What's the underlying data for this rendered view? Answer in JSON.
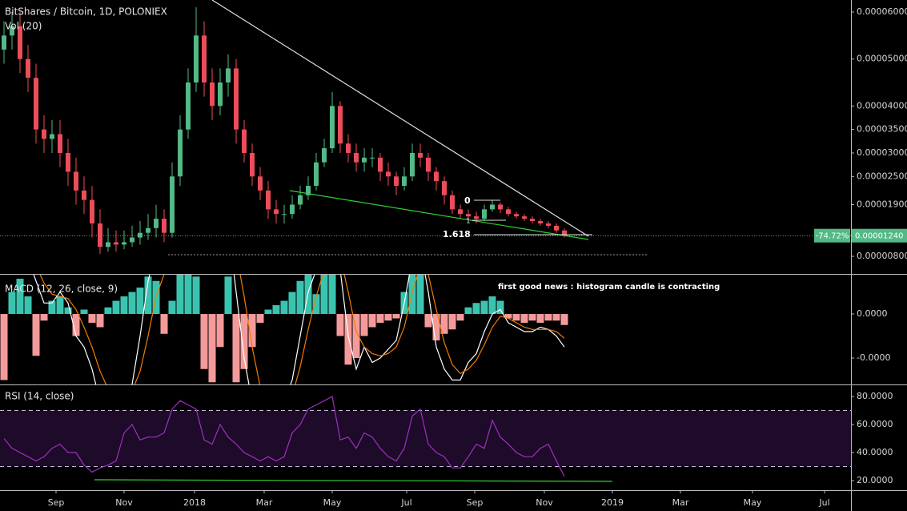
{
  "chart_data": [
    {
      "type": "candlestick",
      "title": "BitShares / Bitcoin, 1D, POLONIEX",
      "subtitle": "Vol (20)",
      "up_color": "#53b987",
      "down_color": "#eb4d5c",
      "xlim": [
        -0.5,
        105.8
      ],
      "ylim": [
        4.25e-06,
        6.256e-05
      ],
      "yticks": [
        {
          "value": 6e-05,
          "label": "0.00006000"
        },
        {
          "value": 5e-05,
          "label": "0.00005000"
        },
        {
          "value": 4e-05,
          "label": "0.00004000"
        },
        {
          "value": 3.5e-05,
          "label": "0.00003500"
        },
        {
          "value": 3e-05,
          "label": "0.00003000"
        },
        {
          "value": 2.5e-05,
          "label": "0.00002500"
        },
        {
          "value": 1.9e-05,
          "label": "0.00001900"
        },
        {
          "value": 8e-06,
          "label": "0.00000800"
        }
      ],
      "last_price": {
        "value": 1.24e-05,
        "label": "0.00001240",
        "change": "-74.72%"
      },
      "fib_labels": [
        "0",
        "1",
        "1.618"
      ],
      "open": [
        5.2e-05,
        5.5e-05,
        5.7e-05,
        5e-05,
        4.6e-05,
        3.5e-05,
        3.3e-05,
        3.4e-05,
        3e-05,
        2.6e-05,
        2.2e-05,
        2e-05,
        1.5e-05,
        1e-05,
        1.1e-05,
        1.05e-05,
        1.1e-05,
        1.2e-05,
        1.3e-05,
        1.4e-05,
        1.6e-05,
        1.3e-05,
        2.5e-05,
        3.5e-05,
        4.5e-05,
        5.5e-05,
        4.5e-05,
        4e-05,
        4.5e-05,
        4.8e-05,
        3.5e-05,
        3e-05,
        2.5e-05,
        2.2e-05,
        1.8e-05,
        1.7e-05,
        1.7e-05,
        1.9e-05,
        2.1e-05,
        2.3e-05,
        2.8e-05,
        3.1e-05,
        4e-05,
        3.2e-05,
        3e-05,
        2.8e-05,
        2.9e-05,
        2.9e-05,
        2.6e-05,
        2.5e-05,
        2.3e-05,
        2.5e-05,
        3e-05,
        2.9e-05,
        2.6e-05,
        2.4e-05,
        2.1e-05,
        1.8e-05,
        1.7e-05,
        1.65e-05,
        1.6e-05,
        1.8e-05,
        1.9e-05,
        1.8e-05,
        1.7e-05,
        1.65e-05,
        1.6e-05,
        1.55e-05,
        1.5e-05,
        1.45e-05,
        1.35e-05
      ],
      "high": [
        5.8e-05,
        6e-05,
        6e-05,
        5.3e-05,
        4.9e-05,
        3.8e-05,
        3.7e-05,
        3.7e-05,
        3.3e-05,
        2.9e-05,
        2.5e-05,
        2.3e-05,
        1.8e-05,
        1.4e-05,
        1.35e-05,
        1.35e-05,
        1.45e-05,
        1.55e-05,
        1.7e-05,
        1.9e-05,
        1.8e-05,
        2.8e-05,
        3.8e-05,
        4.8e-05,
        6.1e-05,
        5.8e-05,
        4.8e-05,
        4.8e-05,
        5.1e-05,
        5e-05,
        3.7e-05,
        3.2e-05,
        2.7e-05,
        2.4e-05,
        2e-05,
        1.9e-05,
        2.1e-05,
        2.3e-05,
        2.5e-05,
        3e-05,
        3.3e-05,
        4.3e-05,
        4.1e-05,
        3.4e-05,
        3.2e-05,
        3.1e-05,
        3.1e-05,
        3e-05,
        2.8e-05,
        2.6e-05,
        2.7e-05,
        3.2e-05,
        3.2e-05,
        3e-05,
        2.7e-05,
        2.5e-05,
        2.2e-05,
        1.9e-05,
        1.8e-05,
        1.75e-05,
        1.9e-05,
        2e-05,
        1.95e-05,
        1.85e-05,
        1.75e-05,
        1.7e-05,
        1.65e-05,
        1.6e-05,
        1.55e-05,
        1.5e-05,
        1.4e-05
      ],
      "low": [
        4.9e-05,
        5.2e-05,
        4.7e-05,
        4.3e-05,
        3.2e-05,
        3e-05,
        3e-05,
        2.7e-05,
        2.3e-05,
        1.9e-05,
        1.7e-05,
        1.2e-05,
        8.5e-06,
        9e-06,
        9e-06,
        9.5e-06,
        1e-05,
        1.05e-05,
        1.15e-05,
        1.2e-05,
        1.1e-05,
        1.2e-05,
        2.3e-05,
        3.3e-05,
        4.3e-05,
        4.2e-05,
        3.7e-05,
        3.8e-05,
        4.2e-05,
        3.2e-05,
        2.8e-05,
        2.3e-05,
        2e-05,
        1.6e-05,
        1.5e-05,
        1.5e-05,
        1.6e-05,
        1.8e-05,
        2e-05,
        2.2e-05,
        2.7e-05,
        3e-05,
        3e-05,
        2.8e-05,
        2.6e-05,
        2.6e-05,
        2.7e-05,
        2.4e-05,
        2.3e-05,
        2.1e-05,
        2.2e-05,
        2.4e-05,
        2.7e-05,
        2.4e-05,
        2.2e-05,
        1.9e-05,
        1.7e-05,
        1.6e-05,
        1.55e-05,
        1.5e-05,
        1.55e-05,
        1.75e-05,
        1.72e-05,
        1.65e-05,
        1.6e-05,
        1.55e-05,
        1.5e-05,
        1.45e-05,
        1.4e-05,
        1.3e-05,
        1.2e-05
      ],
      "close": [
        5.5e-05,
        5.7e-05,
        5e-05,
        4.6e-05,
        3.5e-05,
        3.3e-05,
        3.4e-05,
        3e-05,
        2.6e-05,
        2.2e-05,
        2e-05,
        1.5e-05,
        1e-05,
        1.1e-05,
        1.05e-05,
        1.1e-05,
        1.2e-05,
        1.3e-05,
        1.4e-05,
        1.6e-05,
        1.3e-05,
        2.5e-05,
        3.5e-05,
        4.5e-05,
        5.5e-05,
        4.5e-05,
        4e-05,
        4.5e-05,
        4.8e-05,
        3.5e-05,
        3e-05,
        2.5e-05,
        2.2e-05,
        1.8e-05,
        1.7e-05,
        1.7e-05,
        1.9e-05,
        2.1e-05,
        2.3e-05,
        2.8e-05,
        3.1e-05,
        4e-05,
        3.2e-05,
        3e-05,
        2.8e-05,
        2.9e-05,
        2.9e-05,
        2.6e-05,
        2.5e-05,
        2.3e-05,
        2.5e-05,
        3e-05,
        2.9e-05,
        2.6e-05,
        2.4e-05,
        2.1e-05,
        1.8e-05,
        1.7e-05,
        1.65e-05,
        1.6e-05,
        1.8e-05,
        1.9e-05,
        1.8e-05,
        1.7e-05,
        1.65e-05,
        1.6e-05,
        1.55e-05,
        1.5e-05,
        1.45e-05,
        1.35e-05,
        1.24e-05
      ]
    },
    {
      "type": "macd",
      "title": "MACD (12, 26, close, 9)",
      "annotation": "first good news : histogram candle is contracting",
      "hist_up_color": "#3ac4b0",
      "hist_down_color": "#f59a9a",
      "macd_color": "#ffffff",
      "signal_color": "#f57c00",
      "xlim": [
        -0.5,
        105.8
      ],
      "ylim": [
        -3.2e-06,
        1.82e-06
      ],
      "yticks": [
        {
          "value": 0,
          "label": "0.0000"
        },
        {
          "value": -2e-06,
          "label": "-0.0000"
        }
      ],
      "histogram": [
        -3e-06,
        1e-06,
        1.6e-06,
        8e-07,
        -1.9e-06,
        -3e-07,
        6e-07,
        8e-07,
        3e-07,
        -1e-06,
        2e-07,
        -4e-07,
        -6e-07,
        3e-07,
        6e-07,
        8e-07,
        1e-06,
        1.2e-06,
        1.7e-06,
        1.5e-06,
        -9e-07,
        6e-07,
        1.8e-06,
        1.8e-06,
        1.7e-06,
        -2.5e-06,
        -3.1e-06,
        -1.5e-06,
        1.7e-06,
        -3.1e-06,
        -2.5e-06,
        -1.5e-06,
        -4e-07,
        2e-07,
        4e-07,
        6e-07,
        1e-06,
        1.5e-06,
        1.8e-06,
        9e-07,
        1.8e-06,
        1.8e-06,
        -1e-06,
        -2.3e-06,
        -2e-06,
        -1e-06,
        -6e-07,
        -4e-07,
        -3e-07,
        -2e-07,
        1e-06,
        1.8e-06,
        1.8e-06,
        -6e-07,
        -1.2e-06,
        -9e-07,
        -7e-07,
        -3e-07,
        3e-07,
        5e-07,
        6e-07,
        8e-07,
        6e-07,
        -2e-07,
        -3e-07,
        -4e-07,
        -3e-07,
        -4e-07,
        -3e-07,
        -3e-07,
        -5e-07
      ],
      "macd": [
        3e-06,
        3e-06,
        3e-06,
        2.5e-06,
        1.5e-06,
        5e-07,
        5e-07,
        1e-06,
        5e-07,
        -1e-06,
        -1.5e-06,
        -2.5e-06,
        -4e-06,
        -4.5e-06,
        -4e-06,
        -3.5e-06,
        -3.2e-06,
        -1e-06,
        1.5e-06,
        3e-06,
        2.5e-06,
        3e-06,
        5e-06,
        7e-06,
        8e-06,
        6e-06,
        4e-06,
        3e-06,
        4e-06,
        1e-06,
        -2e-06,
        -4e-06,
        -5e-06,
        -5e-06,
        -4.5e-06,
        -4e-06,
        -3e-06,
        -1e-06,
        1e-06,
        2e-06,
        3e-06,
        4e-06,
        2e-06,
        -1e-06,
        -2.5e-06,
        -1.5e-06,
        -2.2e-06,
        -2e-06,
        -1.6e-06,
        -1.2e-06,
        5e-07,
        2.5e-06,
        3e-06,
        1e-06,
        -1.5e-06,
        -2.5e-06,
        -3e-06,
        -3e-06,
        -2.2e-06,
        -1.8e-06,
        -8e-07,
        0,
        2e-07,
        -4e-07,
        -6e-07,
        -8e-07,
        -8e-07,
        -6e-07,
        -7e-07,
        -1e-06,
        -1.5e-06
      ],
      "signal": [
        2.5e-06,
        2.8e-06,
        3e-06,
        2.8e-06,
        2.2e-06,
        1.4e-06,
        9e-07,
        8e-07,
        7e-07,
        2e-07,
        -6e-07,
        -1.5e-06,
        -2.6e-06,
        -3.4e-06,
        -3.8e-06,
        -3.8e-06,
        -3.5e-06,
        -2.6e-06,
        -1e-06,
        8e-07,
        1.8e-06,
        2.5e-06,
        3.5e-06,
        5e-06,
        6.3e-06,
        6.5e-06,
        5.5e-06,
        4.3e-06,
        3.9e-06,
        2.8e-06,
        8e-07,
        -1.5e-06,
        -3.3e-06,
        -4.3e-06,
        -4.6e-06,
        -4.3e-06,
        -3.7e-06,
        -2.4e-06,
        -7e-07,
        8e-07,
        2e-06,
        3e-06,
        2.6e-06,
        1e-06,
        -8e-07,
        -1.5e-06,
        -1.8e-06,
        -1.9e-06,
        -1.8e-06,
        -1.5e-06,
        -6e-07,
        1e-06,
        2.2e-06,
        1.8e-06,
        2e-07,
        -1.3e-06,
        -2.3e-06,
        -2.7e-06,
        -2.5e-06,
        -2.1e-06,
        -1.4e-06,
        -6e-07,
        -1e-07,
        -2e-07,
        -4e-07,
        -6e-07,
        -7e-07,
        -7e-07,
        -7e-07,
        -8e-07,
        -1.1e-06
      ]
    },
    {
      "type": "line",
      "title": "RSI (14, close)",
      "color": "#a12fc0",
      "band_color": "#1d0b29",
      "bands": [
        30,
        70
      ],
      "xlim": [
        -0.5,
        105.8
      ],
      "ylim": [
        13.1,
        88.6
      ],
      "yticks": [
        {
          "value": 80,
          "label": "80.0000"
        },
        {
          "value": 60,
          "label": "60.0000"
        },
        {
          "value": 40,
          "label": "40.0000"
        },
        {
          "value": 20,
          "label": "20.0000"
        }
      ],
      "xticks": [
        {
          "value": 6.5,
          "label": "Sep"
        },
        {
          "value": 15,
          "label": "Nov"
        },
        {
          "value": 23.8,
          "label": "2018"
        },
        {
          "value": 32.5,
          "label": "Mar"
        },
        {
          "value": 41,
          "label": "May"
        },
        {
          "value": 50.3,
          "label": "Jul"
        },
        {
          "value": 58.8,
          "label": "Sep"
        },
        {
          "value": 67.5,
          "label": "Nov"
        },
        {
          "value": 76,
          "label": "2019"
        },
        {
          "value": 84.5,
          "label": "Mar"
        },
        {
          "value": 93.5,
          "label": "May"
        },
        {
          "value": 102.5,
          "label": "Jul"
        }
      ],
      "values": [
        50,
        43,
        40,
        37,
        34,
        37,
        43,
        46,
        40,
        40,
        31,
        26,
        29,
        31,
        34,
        54,
        60,
        49,
        51,
        51,
        54,
        71,
        77,
        74,
        71,
        49,
        46,
        60,
        51,
        46,
        40,
        37,
        34,
        37,
        34,
        37,
        54,
        60,
        71,
        74,
        77,
        80,
        49,
        51,
        43,
        54,
        51,
        43,
        37,
        34,
        43,
        66,
        71,
        46,
        40,
        37,
        29,
        29,
        37,
        46,
        43,
        63,
        51,
        46,
        40,
        37,
        37,
        43,
        46,
        34,
        23
      ]
    }
  ]
}
